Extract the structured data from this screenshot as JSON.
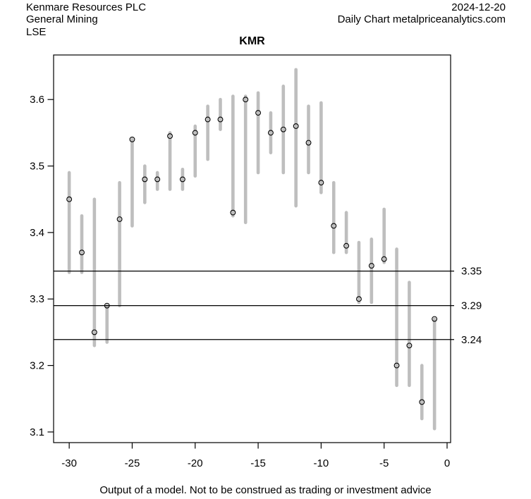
{
  "header": {
    "company": "Kenmare Resources PLC",
    "sector": "General Mining",
    "exchange": "LSE",
    "date": "2024-12-20",
    "source": "Daily Chart metalpriceanalytics.com"
  },
  "title": "KMR",
  "footer": {
    "disclaimer": "Output of a model. Not to be construed as trading or investment advice"
  },
  "chart_data": {
    "type": "bar",
    "subtype": "high-low-close-range",
    "title": "KMR",
    "xlabel": "",
    "ylabel": "",
    "grid": false,
    "legend": "none",
    "x": [
      -30,
      -29,
      -28,
      -27,
      -26,
      -25,
      -24,
      -23,
      -22,
      -21,
      -20,
      -19,
      -18,
      -17,
      -16,
      -15,
      -14,
      -13,
      -12,
      -11,
      -10,
      -9,
      -8,
      -7,
      -6,
      -5,
      -4,
      -3,
      -2,
      -1
    ],
    "series": [
      {
        "name": "high",
        "values": [
          3.49,
          3.425,
          3.45,
          3.29,
          3.475,
          3.54,
          3.5,
          3.49,
          3.55,
          3.495,
          3.56,
          3.59,
          3.6,
          3.605,
          3.605,
          3.61,
          3.58,
          3.62,
          3.645,
          3.59,
          3.595,
          3.475,
          3.43,
          3.385,
          3.39,
          3.435,
          3.375,
          3.325,
          3.2,
          3.27
        ]
      },
      {
        "name": "low",
        "values": [
          3.34,
          3.34,
          3.23,
          3.235,
          3.29,
          3.41,
          3.445,
          3.465,
          3.465,
          3.465,
          3.485,
          3.51,
          3.555,
          3.425,
          3.415,
          3.49,
          3.52,
          3.49,
          3.44,
          3.49,
          3.46,
          3.37,
          3.37,
          3.295,
          3.295,
          3.355,
          3.17,
          3.17,
          3.12,
          3.105
        ]
      },
      {
        "name": "close",
        "values": [
          3.45,
          3.37,
          3.25,
          3.29,
          3.42,
          3.54,
          3.48,
          3.48,
          3.545,
          3.48,
          3.55,
          3.57,
          3.57,
          3.43,
          3.6,
          3.58,
          3.55,
          3.555,
          3.56,
          3.535,
          3.475,
          3.41,
          3.38,
          3.3,
          3.35,
          3.36,
          3.2,
          3.23,
          3.145,
          3.27
        ]
      }
    ],
    "x_ticks": [
      -30,
      -25,
      -20,
      -15,
      -10,
      -5,
      0
    ],
    "y_ticks": [
      3.1,
      3.2,
      3.3,
      3.4,
      3.5,
      3.6
    ],
    "xlim": [
      -31.24,
      0.28
    ],
    "ylim": [
      3.084,
      3.667
    ],
    "levels": [
      {
        "label": "3.35",
        "value": 3.342
      },
      {
        "label": "3.29",
        "value": 3.29
      },
      {
        "label": "3.24",
        "value": 3.239
      }
    ],
    "colors": {
      "bar": "#bebebe",
      "axis": "#000000",
      "level_line": "#000000",
      "dot_stroke": "#000000",
      "background": "#ffffff"
    }
  }
}
